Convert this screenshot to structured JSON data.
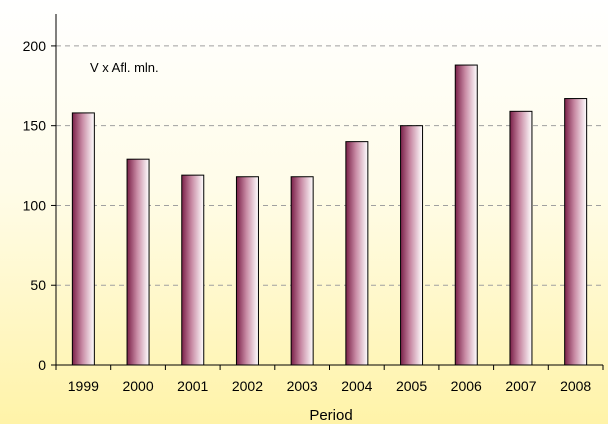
{
  "chart_data": {
    "type": "bar",
    "title": "",
    "annotation": "V x Afl. mln.",
    "xlabel": "Period",
    "ylabel": "",
    "categories": [
      "1999",
      "2000",
      "2001",
      "2002",
      "2003",
      "2004",
      "2005",
      "2006",
      "2007",
      "2008"
    ],
    "series": [
      {
        "values": [
          158,
          129,
          119,
          118,
          118,
          140,
          150,
          188,
          159,
          167
        ]
      }
    ],
    "ylim": [
      0,
      220
    ],
    "yticks": [
      0,
      50,
      100,
      150,
      200
    ],
    "grid": true,
    "gridStyle": "dashed-horizontal",
    "legend": "none",
    "colors": {
      "background_top": "#ffffff",
      "background_bottom": "#fff3a8",
      "bar_dark": "#7a2048",
      "bar_light": "#ffffff",
      "axis": "#000000",
      "grid": "#a0a0a0"
    }
  }
}
